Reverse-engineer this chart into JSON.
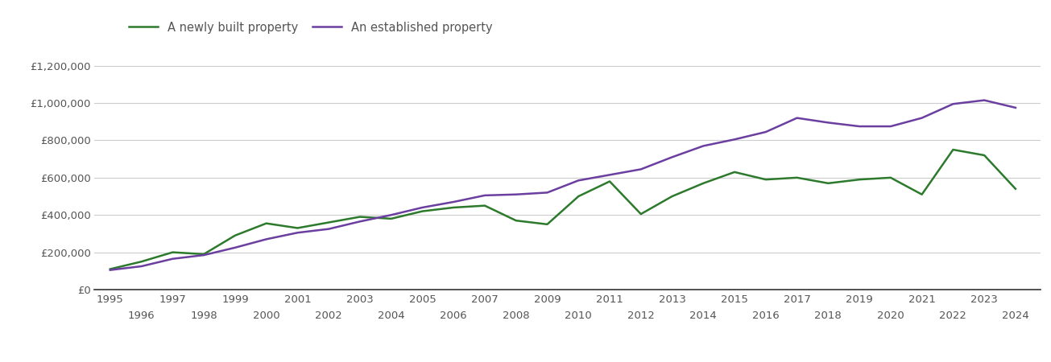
{
  "title": "",
  "legend_labels": [
    "A newly built property",
    "An established property"
  ],
  "line_colors": [
    "#2d7a2d",
    "#6b3fa0"
  ],
  "years": [
    1995,
    1996,
    1997,
    1998,
    1999,
    2000,
    2001,
    2002,
    2003,
    2004,
    2005,
    2006,
    2007,
    2008,
    2009,
    2010,
    2011,
    2012,
    2013,
    2014,
    2015,
    2016,
    2017,
    2018,
    2019,
    2020,
    2021,
    2022,
    2023,
    2024
  ],
  "new_build": [
    110000,
    150000,
    200000,
    190000,
    290000,
    355000,
    330000,
    360000,
    390000,
    380000,
    420000,
    440000,
    450000,
    370000,
    350000,
    500000,
    580000,
    405000,
    500000,
    570000,
    630000,
    590000,
    600000,
    570000,
    590000,
    600000,
    510000,
    750000,
    720000,
    540000
  ],
  "established": [
    105000,
    125000,
    165000,
    185000,
    225000,
    270000,
    305000,
    325000,
    365000,
    400000,
    440000,
    470000,
    505000,
    510000,
    520000,
    585000,
    615000,
    645000,
    710000,
    770000,
    805000,
    845000,
    920000,
    895000,
    875000,
    875000,
    920000,
    995000,
    1015000,
    975000
  ],
  "ylim": [
    0,
    1300000
  ],
  "yticks": [
    0,
    200000,
    400000,
    600000,
    800000,
    1000000,
    1200000
  ],
  "ytick_labels": [
    "£0",
    "£200,000",
    "£400,000",
    "£600,000",
    "£800,000",
    "£1,000,000",
    "£1,200,000"
  ],
  "xlim_left": 1994.5,
  "xlim_right": 2024.8,
  "odd_years": [
    1995,
    1997,
    1999,
    2001,
    2003,
    2005,
    2007,
    2009,
    2011,
    2013,
    2015,
    2017,
    2019,
    2021,
    2023
  ],
  "even_years": [
    1996,
    1998,
    2000,
    2002,
    2004,
    2006,
    2008,
    2010,
    2012,
    2014,
    2016,
    2018,
    2020,
    2022,
    2024
  ],
  "background_color": "#ffffff",
  "grid_color": "#cccccc",
  "line_width": 1.8,
  "text_color": "#555555",
  "tick_fontsize": 9.5,
  "legend_fontsize": 10.5
}
